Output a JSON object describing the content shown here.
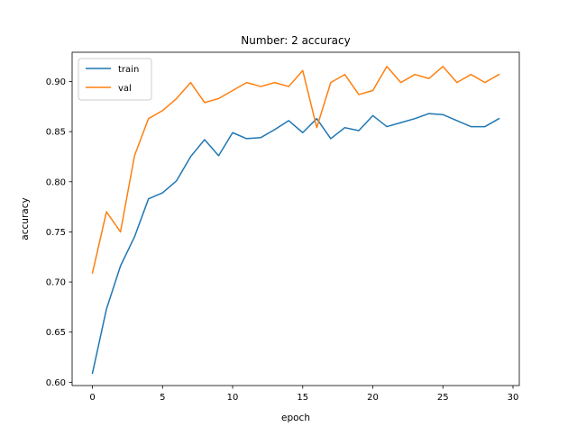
{
  "chart_data": {
    "type": "line",
    "title": "Number: 2 accuracy",
    "xlabel": "epoch",
    "ylabel": "accuracy",
    "xlim": [
      -1.45,
      30.45
    ],
    "ylim": [
      0.5967,
      0.9292
    ],
    "xticks": [
      0,
      5,
      10,
      15,
      20,
      25,
      30
    ],
    "xtick_labels": [
      "0",
      "5",
      "10",
      "15",
      "20",
      "25",
      "30"
    ],
    "yticks": [
      0.6,
      0.65,
      0.7,
      0.75,
      0.8,
      0.85,
      0.9
    ],
    "ytick_labels": [
      "0.60",
      "0.65",
      "0.70",
      "0.75",
      "0.80",
      "0.85",
      "0.90"
    ],
    "grid": false,
    "legend_position": "upper left",
    "x": [
      0,
      1,
      2,
      3,
      4,
      5,
      6,
      7,
      8,
      9,
      10,
      11,
      12,
      13,
      14,
      15,
      16,
      17,
      18,
      19,
      20,
      21,
      22,
      23,
      24,
      25,
      26,
      27,
      28,
      29
    ],
    "series": [
      {
        "name": "train",
        "color": "#1f77b4",
        "values": [
          0.609,
          0.673,
          0.716,
          0.745,
          0.783,
          0.789,
          0.801,
          0.825,
          0.842,
          0.826,
          0.849,
          0.843,
          0.844,
          0.852,
          0.861,
          0.849,
          0.863,
          0.843,
          0.854,
          0.851,
          0.866,
          0.855,
          0.859,
          0.863,
          0.868,
          0.867,
          0.861,
          0.855,
          0.855,
          0.863
        ]
      },
      {
        "name": "val",
        "color": "#ff7f0e",
        "values": [
          0.709,
          0.77,
          0.75,
          0.826,
          0.863,
          0.871,
          0.883,
          0.899,
          0.879,
          0.883,
          0.891,
          0.899,
          0.895,
          0.899,
          0.895,
          0.911,
          0.854,
          0.899,
          0.907,
          0.887,
          0.891,
          0.915,
          0.899,
          0.907,
          0.903,
          0.915,
          0.899,
          0.907,
          0.899,
          0.907
        ]
      }
    ]
  }
}
